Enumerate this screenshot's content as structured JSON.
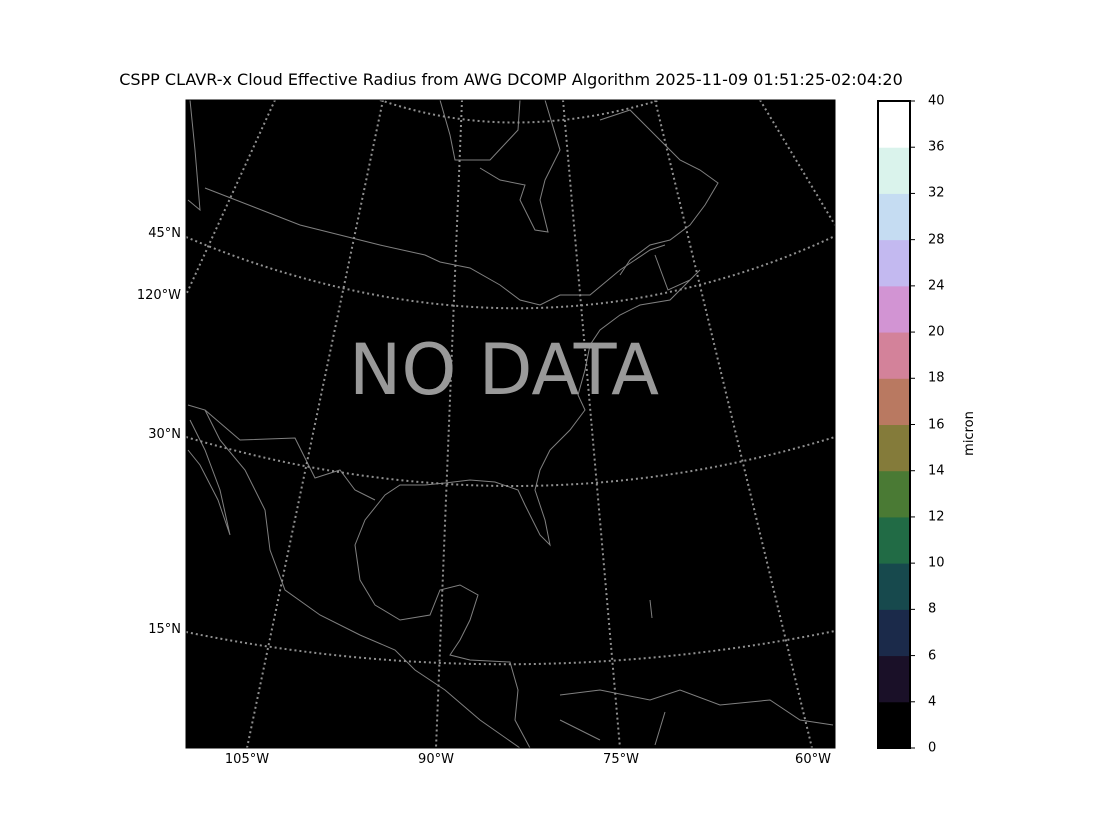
{
  "title": "CSPP CLAVR-x Cloud Effective Radius from AWG DCOMP Algorithm 2025-11-09 01:51:25-02:04:20",
  "map": {
    "overlay_text": "NO DATA",
    "background_color": "#000000",
    "coastline_color": "#808080",
    "lat_labels": [
      "45°N",
      "30°N",
      "15°N"
    ],
    "lon_labels_left": [
      "120°W"
    ],
    "lon_labels_bottom": [
      "105°W",
      "90°W",
      "75°W",
      "60°W"
    ]
  },
  "colorbar": {
    "unit": "micron",
    "ticks": [
      "0",
      "4",
      "6",
      "8",
      "10",
      "12",
      "14",
      "16",
      "18",
      "20",
      "24",
      "28",
      "32",
      "36",
      "40"
    ],
    "colors": [
      "#000000",
      "#1a1028",
      "#1b2a4a",
      "#17494d",
      "#216b45",
      "#4a7a34",
      "#847b3a",
      "#b97961",
      "#d3829a",
      "#d294d3",
      "#c3b9f0",
      "#c5dcf2",
      "#daf3ec",
      "#ffffff"
    ]
  }
}
